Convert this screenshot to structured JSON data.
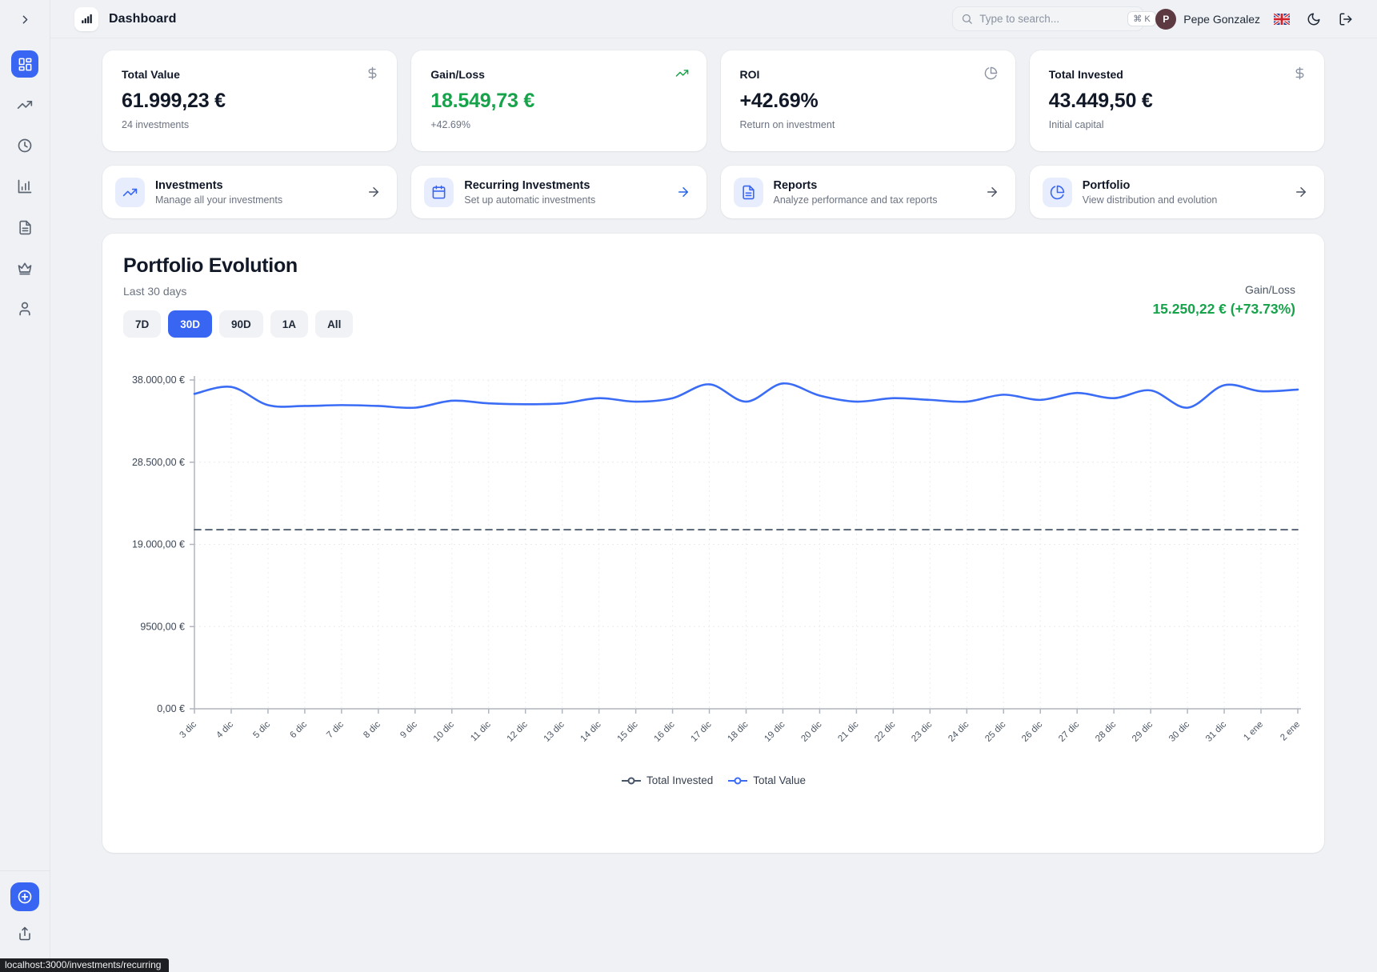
{
  "header": {
    "title": "Dashboard",
    "search": {
      "placeholder": "Type to search...",
      "shortcut": "⌘ K"
    },
    "user": {
      "initial": "P",
      "name": "Pepe Gonzalez"
    }
  },
  "sidebar": {
    "items": [
      {
        "icon": "dashboard-icon",
        "active": true
      },
      {
        "icon": "trending-up-icon",
        "active": false
      },
      {
        "icon": "clock-icon",
        "active": false
      },
      {
        "icon": "bar-chart-icon",
        "active": false
      },
      {
        "icon": "file-text-icon",
        "active": false
      },
      {
        "icon": "crown-icon",
        "active": false
      },
      {
        "icon": "user-icon",
        "active": false
      }
    ],
    "bottom": [
      {
        "icon": "plus-circle-icon"
      },
      {
        "icon": "upload-icon"
      }
    ]
  },
  "stats": [
    {
      "label": "Total Value",
      "value": "61.999,23 €",
      "sub": "24 investments",
      "icon": "dollar-icon"
    },
    {
      "label": "Gain/Loss",
      "value": "18.549,73 €",
      "sub": "+42.69%",
      "icon": "trending-up-icon",
      "value_color": "#16a34a"
    },
    {
      "label": "ROI",
      "value": "+42.69%",
      "sub": "Return on investment",
      "icon": "pie-chart-icon"
    },
    {
      "label": "Total Invested",
      "value": "43.449,50 €",
      "sub": "Initial capital",
      "icon": "dollar-icon"
    }
  ],
  "quicklinks": [
    {
      "title": "Investments",
      "sub": "Manage all your investments",
      "icon": "trending-up-icon"
    },
    {
      "title": "Recurring Investments",
      "sub": "Set up automatic investments",
      "icon": "calendar-icon"
    },
    {
      "title": "Reports",
      "sub": "Analyze performance and tax reports",
      "icon": "file-text-icon"
    },
    {
      "title": "Portfolio",
      "sub": "View distribution and evolution",
      "icon": "pie-chart-icon"
    }
  ],
  "portfolio": {
    "title": "Portfolio Evolution",
    "subtitle": "Last 30 days",
    "ranges": [
      "7D",
      "30D",
      "90D",
      "1A",
      "All"
    ],
    "active_range": "30D",
    "gain_label": "Gain/Loss",
    "gain_value": "15.250,22 € (+73.73%)"
  },
  "chart_data": {
    "type": "line",
    "x": [
      "3 dic",
      "4 dic",
      "5 dic",
      "6 dic",
      "7 dic",
      "8 dic",
      "9 dic",
      "10 dic",
      "11 dic",
      "12 dic",
      "13 dic",
      "14 dic",
      "15 dic",
      "16 dic",
      "17 dic",
      "18 dic",
      "19 dic",
      "20 dic",
      "21 dic",
      "22 dic",
      "23 dic",
      "24 dic",
      "25 dic",
      "26 dic",
      "27 dic",
      "28 dic",
      "29 dic",
      "30 dic",
      "31 dic",
      "1 ene",
      "2 ene"
    ],
    "series": [
      {
        "name": "Total Invested",
        "color": "#475569",
        "style": "dashed",
        "values": [
          20700,
          20700,
          20700,
          20700,
          20700,
          20700,
          20700,
          20700,
          20700,
          20700,
          20700,
          20700,
          20700,
          20700,
          20700,
          20700,
          20700,
          20700,
          20700,
          20700,
          20700,
          20700,
          20700,
          20700,
          20700,
          20700,
          20700,
          20700,
          20700,
          20700,
          20700
        ]
      },
      {
        "name": "Total Value",
        "color": "#3b6cf5",
        "style": "solid",
        "values": [
          36400,
          37200,
          35100,
          35000,
          35100,
          35000,
          34800,
          35600,
          35300,
          35200,
          35300,
          35900,
          35500,
          35900,
          37500,
          35500,
          37600,
          36200,
          35500,
          35900,
          35700,
          35500,
          36300,
          35700,
          36500,
          35900,
          36800,
          34800,
          37400,
          36700,
          36900
        ]
      }
    ],
    "ylim": [
      0,
      38000
    ],
    "yticks": {
      "values": [
        38000,
        28500,
        19000,
        9500,
        0
      ],
      "labels": [
        "38.000,00 €",
        "28.500,00 €",
        "19.000,00 €",
        "9500,00 €",
        "0,00 €"
      ]
    },
    "legend": [
      "Total Invested",
      "Total Value"
    ],
    "legend_position": "bottom",
    "grid": true
  },
  "statusbar": {
    "text": "localhost:3000/investments/recurring"
  },
  "colors": {
    "accent": "#3866f2",
    "green": "#16a34a",
    "line_blue": "#3b6cf5",
    "invested_gray": "#475569"
  }
}
